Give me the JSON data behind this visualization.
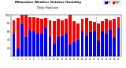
{
  "title": "Milwaukee Weather Outdoor Humidity",
  "subtitle": "Daily High/Low",
  "high_values": [
    88,
    93,
    100,
    100,
    95,
    95,
    93,
    90,
    93,
    88,
    85,
    90,
    88,
    90,
    100,
    85,
    80,
    90,
    93,
    85,
    83,
    80,
    85,
    90,
    88,
    90,
    95
  ],
  "low_values": [
    55,
    20,
    78,
    48,
    63,
    60,
    55,
    55,
    68,
    48,
    30,
    48,
    50,
    55,
    28,
    35,
    40,
    60,
    50,
    58,
    60,
    38,
    60,
    55,
    65,
    45,
    68
  ],
  "x_labels": [
    "1",
    "2",
    "3",
    "4",
    "5",
    "6",
    "7",
    "8",
    "9",
    "10",
    "11",
    "12",
    "13",
    "14",
    "15",
    "16",
    "17",
    "18",
    "19",
    "20",
    "21",
    "22",
    "23",
    "24",
    "25",
    "26",
    "27"
  ],
  "high_color": "#ff0000",
  "low_color": "#0000ff",
  "bg_color": "#ffffff",
  "ylim": [
    0,
    100
  ],
  "yticks": [
    20,
    40,
    60,
    80,
    100
  ],
  "dashed_line_x": 20.5,
  "legend_high": "High",
  "legend_low": "Low"
}
